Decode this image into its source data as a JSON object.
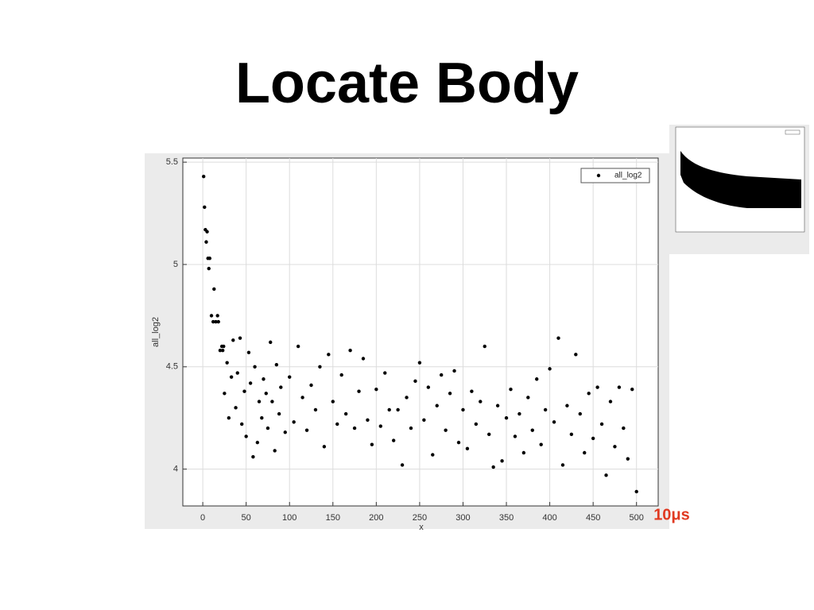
{
  "chart_data": {
    "type": "scatter",
    "title": "Locate Body",
    "xlabel": "x",
    "ylabel": "all_log2",
    "annotation": "10μs",
    "xlim": [
      -23,
      525
    ],
    "ylim": [
      3.82,
      5.52
    ],
    "xticks": [
      0,
      50,
      100,
      150,
      200,
      250,
      300,
      350,
      400,
      450,
      500
    ],
    "yticks": [
      4,
      4.5,
      5,
      5.5
    ],
    "grid": true,
    "legend": "upper right",
    "series": [
      {
        "name": "all_log2",
        "color": "#000000",
        "x": [
          1,
          2,
          3,
          4,
          5,
          6,
          7,
          8,
          10,
          12,
          13,
          15,
          17,
          18,
          20,
          22,
          23,
          24,
          25,
          28,
          30,
          33,
          35,
          38,
          40,
          43,
          45,
          48,
          50,
          53,
          55,
          58,
          60,
          63,
          65,
          68,
          70,
          73,
          75,
          78,
          80,
          83,
          85,
          88,
          90,
          95,
          100,
          105,
          110,
          115,
          120,
          125,
          130,
          135,
          140,
          145,
          150,
          155,
          160,
          165,
          170,
          175,
          180,
          185,
          190,
          195,
          200,
          205,
          210,
          215,
          220,
          225,
          230,
          235,
          240,
          245,
          250,
          255,
          260,
          265,
          270,
          275,
          280,
          285,
          290,
          295,
          300,
          305,
          310,
          315,
          320,
          325,
          330,
          335,
          340,
          345,
          350,
          355,
          360,
          365,
          370,
          375,
          380,
          385,
          390,
          395,
          400,
          405,
          410,
          415,
          420,
          425,
          430,
          435,
          440,
          445,
          450,
          455,
          460,
          465,
          470,
          475,
          480,
          485,
          490,
          495,
          500
        ],
        "values": [
          5.43,
          5.28,
          5.17,
          5.11,
          5.16,
          5.03,
          4.98,
          5.03,
          4.75,
          4.72,
          4.88,
          4.72,
          4.75,
          4.72,
          4.58,
          4.6,
          4.58,
          4.6,
          4.37,
          4.52,
          4.25,
          4.45,
          4.63,
          4.3,
          4.47,
          4.64,
          4.22,
          4.38,
          4.16,
          4.57,
          4.42,
          4.06,
          4.5,
          4.13,
          4.33,
          4.25,
          4.44,
          4.37,
          4.2,
          4.62,
          4.33,
          4.09,
          4.51,
          4.27,
          4.4,
          4.18,
          4.45,
          4.23,
          4.6,
          4.35,
          4.19,
          4.41,
          4.29,
          4.5,
          4.11,
          4.56,
          4.33,
          4.22,
          4.46,
          4.27,
          4.58,
          4.2,
          4.38,
          4.54,
          4.24,
          4.12,
          4.39,
          4.21,
          4.47,
          4.29,
          4.14,
          4.29,
          4.02,
          4.35,
          4.2,
          4.43,
          4.52,
          4.24,
          4.4,
          4.07,
          4.31,
          4.46,
          4.19,
          4.37,
          4.48,
          4.13,
          4.29,
          4.1,
          4.38,
          4.22,
          4.33,
          4.6,
          4.17,
          4.01,
          4.31,
          4.04,
          4.25,
          4.39,
          4.16,
          4.27,
          4.08,
          4.35,
          4.19,
          4.44,
          4.12,
          4.29,
          4.49,
          4.23,
          4.64,
          4.02,
          4.31,
          4.17,
          4.56,
          4.27,
          4.08,
          4.37,
          4.15,
          4.4,
          4.22,
          3.97,
          4.33,
          4.11,
          4.4,
          4.2,
          4.05,
          4.39,
          3.89
        ]
      }
    ]
  }
}
